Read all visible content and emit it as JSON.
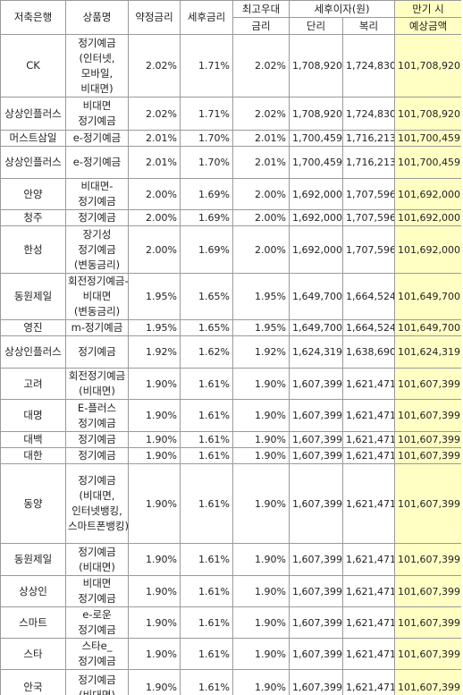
{
  "table": {
    "header": {
      "top": [
        "저축은행",
        "상품명",
        "약정금리",
        "세후금리",
        "최고우대",
        "세후이자(원)",
        "만기 시"
      ],
      "sub": [
        "금리",
        "단리",
        "복리",
        "예상금액"
      ]
    },
    "rows": [
      [
        "CK",
        "정기예금(인터넷,모바일,비대면)",
        "2.02%",
        "1.71%",
        "2.02%",
        "1,708,920",
        "1,724,830",
        "101,708,920"
      ],
      [
        "상상인플러스",
        "비대면 정기예금",
        "2.02%",
        "1.71%",
        "2.02%",
        "1,708,920",
        "1,724,830",
        "101,708,920"
      ],
      [
        "머스트삼일",
        "e-정기예금",
        "2.01%",
        "1.70%",
        "2.01%",
        "1,700,459",
        "1,716,213",
        "101,700,459"
      ],
      [
        "상상인플러스",
        "e-정기예금",
        "2.01%",
        "1.70%",
        "2.01%",
        "1,700,459",
        "1,716,213",
        "101,700,459"
      ],
      [
        "안양",
        "비대면-정기예금",
        "2.00%",
        "1.69%",
        "2.00%",
        "1,692,000",
        "1,707,596",
        "101,692,000"
      ],
      [
        "청주",
        "정기예금",
        "2.00%",
        "1.69%",
        "2.00%",
        "1,692,000",
        "1,707,596",
        "101,692,000"
      ],
      [
        "한성",
        "장기성 정기예금(변동금리)",
        "2.00%",
        "1.69%",
        "2.00%",
        "1,692,000",
        "1,707,596",
        "101,692,000"
      ],
      [
        "동원제일",
        "회전정기예금-비대면(변동금리)",
        "1.95%",
        "1.65%",
        "1.95%",
        "1,649,700",
        "1,664,524",
        "101,649,700"
      ],
      [
        "영진",
        "m-정기예금",
        "1.95%",
        "1.65%",
        "1.95%",
        "1,649,700",
        "1,664,524",
        "101,649,700"
      ],
      [
        "상상인플러스",
        "정기예금",
        "1.92%",
        "1.62%",
        "1.92%",
        "1,624,319",
        "1,638,690",
        "101,624,319"
      ],
      [
        "고려",
        "회전정기예금(비대면)",
        "1.90%",
        "1.61%",
        "1.90%",
        "1,607,399",
        "1,621,471",
        "101,607,399"
      ],
      [
        "대명",
        "E-플러스 정기예금",
        "1.90%",
        "1.61%",
        "1.90%",
        "1,607,399",
        "1,621,471",
        "101,607,399"
      ],
      [
        "대백",
        "정기예금",
        "1.90%",
        "1.61%",
        "1.90%",
        "1,607,399",
        "1,621,471",
        "101,607,399"
      ],
      [
        "대한",
        "정기예금",
        "1.90%",
        "1.61%",
        "1.90%",
        "1,607,399",
        "1,621,471",
        "101,607,399"
      ],
      [
        "동양",
        "정기예금(비대면, 인터넷뱅킹, 스마트폰뱅킹)",
        "1.90%",
        "1.61%",
        "1.90%",
        "1,607,399",
        "1,621,471",
        "101,607,399"
      ],
      [
        "동원제일",
        "정기예금(비대면)",
        "1.90%",
        "1.61%",
        "1.90%",
        "1,607,399",
        "1,621,471",
        "101,607,399"
      ],
      [
        "상상인",
        "비대면 정기예금",
        "1.90%",
        "1.61%",
        "1.90%",
        "1,607,399",
        "1,621,471",
        "101,607,399"
      ],
      [
        "스마트",
        "e-로운 정기예금",
        "1.90%",
        "1.61%",
        "1.90%",
        "1,607,399",
        "1,621,471",
        "101,607,399"
      ],
      [
        "스타",
        "스타e_정기예금",
        "1.90%",
        "1.61%",
        "1.90%",
        "1,607,399",
        "1,621,471",
        "101,607,399"
      ],
      [
        "안국",
        "정기예금(비대면)",
        "1.90%",
        "1.61%",
        "1.90%",
        "1,607,399",
        "1,621,471",
        "101,607,399"
      ]
    ]
  }
}
